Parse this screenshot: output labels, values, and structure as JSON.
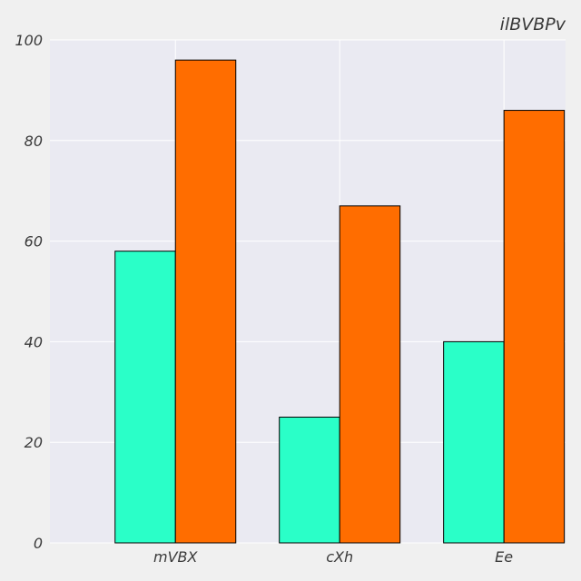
{
  "chart_data": {
    "type": "bar",
    "title": "ilBVBPv",
    "categories": [
      "mVBX",
      "cXh",
      "Ee"
    ],
    "series": [
      {
        "values": [
          58,
          25,
          40
        ],
        "color": "#2affc8"
      },
      {
        "values": [
          96,
          67,
          86
        ],
        "color": "#ff6d00"
      }
    ],
    "ylim": [
      0,
      100
    ],
    "yticks": [
      0,
      20,
      40,
      60,
      80,
      100
    ],
    "ytick_labels": [
      "0",
      "20",
      "40",
      "60",
      "80",
      "100"
    ],
    "grid": true,
    "plot_background": "#eaeaf2",
    "figure_background": "#f0f0f0",
    "bar_edge_color": "#000000",
    "grid_color": "#ffffff"
  }
}
